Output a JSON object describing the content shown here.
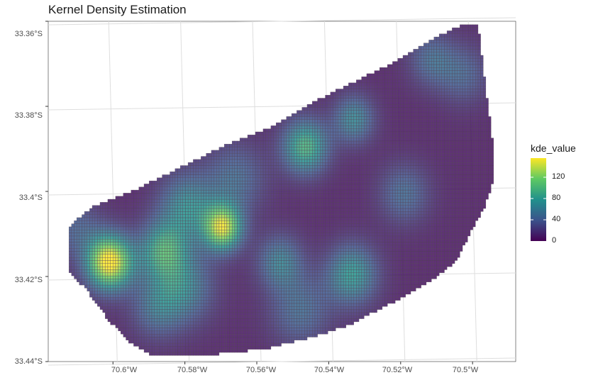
{
  "chart_data": {
    "type": "heatmap",
    "title": "Kernel Density Estimation",
    "xlabel": "",
    "ylabel": "",
    "x_ticks": [
      "70.6°W",
      "70.58°W",
      "70.56°W",
      "70.54°W",
      "70.52°W",
      "70.5°W"
    ],
    "y_ticks": [
      "33.36°S",
      "33.38°S",
      "33.4°S",
      "33.42°S",
      "33.44°S"
    ],
    "xlim": [
      -70.618,
      -70.488
    ],
    "ylim": [
      -33.44,
      -33.36
    ],
    "legend": {
      "title": "kde_value",
      "ticks": [
        "120",
        "80",
        "40",
        "0"
      ],
      "range": [
        0,
        150
      ],
      "placement": "right"
    },
    "colormap": [
      "#440154",
      "#3b528b",
      "#21918c",
      "#5ec962",
      "#fde725"
    ],
    "grid": true,
    "hotspots": [
      {
        "lon": -70.601,
        "lat": -33.4166,
        "value": 150,
        "spread": 0.0045
      },
      {
        "lon": -70.5695,
        "lat": -33.4085,
        "value": 128,
        "spread": 0.0038
      },
      {
        "lon": -70.586,
        "lat": -33.4138,
        "value": 78,
        "spread": 0.0048
      },
      {
        "lon": -70.5465,
        "lat": -33.3895,
        "value": 88,
        "spread": 0.0045
      },
      {
        "lon": -70.5335,
        "lat": -33.4195,
        "value": 70,
        "spread": 0.005
      },
      {
        "lon": -70.5795,
        "lat": -33.4035,
        "value": 60,
        "spread": 0.0055
      },
      {
        "lon": -70.5535,
        "lat": -33.4165,
        "value": 52,
        "spread": 0.0045
      },
      {
        "lon": -70.5805,
        "lat": -33.4225,
        "value": 55,
        "spread": 0.006
      },
      {
        "lon": -70.533,
        "lat": -33.383,
        "value": 58,
        "spread": 0.004
      },
      {
        "lon": -70.566,
        "lat": -33.397,
        "value": 40,
        "spread": 0.006
      },
      {
        "lon": -70.519,
        "lat": -33.4005,
        "value": 40,
        "spread": 0.005
      },
      {
        "lon": -70.5115,
        "lat": -33.369,
        "value": 38,
        "spread": 0.0045
      },
      {
        "lon": -70.5025,
        "lat": -33.3725,
        "value": 34,
        "spread": 0.005
      },
      {
        "lon": -70.548,
        "lat": -33.428,
        "value": 40,
        "spread": 0.006
      },
      {
        "lon": -70.588,
        "lat": -33.4275,
        "value": 38,
        "spread": 0.005
      },
      {
        "lon": -70.6105,
        "lat": -33.4085,
        "value": 32,
        "spread": 0.005
      }
    ]
  }
}
